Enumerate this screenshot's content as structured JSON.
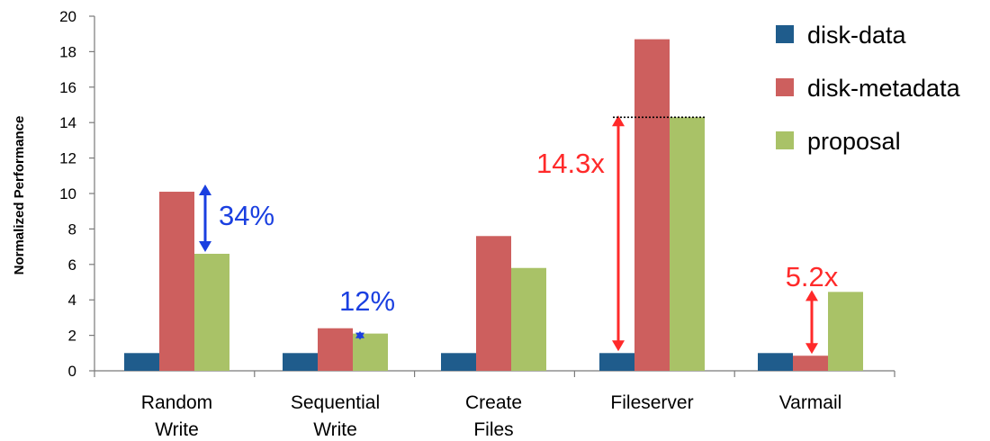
{
  "chart_data": {
    "type": "bar",
    "title": "",
    "xlabel": "",
    "ylabel": "Normalized Performance",
    "ylim": [
      0,
      20
    ],
    "yticks": [
      0,
      2,
      4,
      6,
      8,
      10,
      12,
      14,
      16,
      18,
      20
    ],
    "grid": false,
    "legend_position": "top-right",
    "categories": [
      [
        "Random",
        "Write"
      ],
      [
        "Sequential",
        "Write"
      ],
      [
        "Create",
        "Files"
      ],
      [
        "Fileserver"
      ],
      [
        "Varmail"
      ]
    ],
    "series": [
      {
        "name": "disk-data",
        "color": "#1f5c8c",
        "values": [
          1,
          1,
          1,
          1,
          1
        ]
      },
      {
        "name": "disk-metadata",
        "color": "#cd5f5e",
        "values": [
          10.1,
          2.4,
          7.6,
          18.7,
          0.85
        ]
      },
      {
        "name": "proposal",
        "color": "#a9c267",
        "values": [
          6.6,
          2.1,
          5.8,
          14.3,
          4.45
        ]
      }
    ],
    "annotations": [
      {
        "text": "34%",
        "color": "#1a3fe0",
        "category_index": 0,
        "y_from": 6.6,
        "y_to": 10.1
      },
      {
        "text": "12%",
        "color": "#1a3fe0",
        "category_index": 1,
        "y_from": 2.1,
        "y_to": 2.4
      },
      {
        "text": "14.3x",
        "color": "#ff2a2a",
        "category_index": 3,
        "y_from": 1,
        "y_to": 14.3,
        "reference_line_at": 14.3
      },
      {
        "text": "5.2x",
        "color": "#ff2a2a",
        "category_index": 4,
        "y_from": 0.85,
        "y_to": 4.45
      }
    ]
  }
}
